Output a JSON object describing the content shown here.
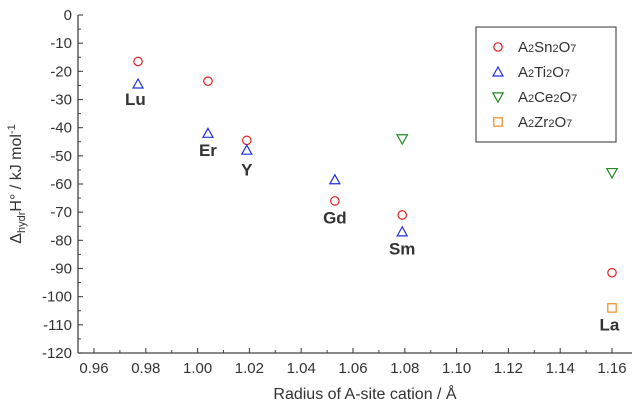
{
  "chart_data": {
    "type": "scatter",
    "title": "",
    "xlabel": "Radius of A-site cation / Å",
    "ylabel": {
      "prefix": "Δ",
      "sub": "hydr",
      "main": "H° / kJ mol",
      "sup": "-1"
    },
    "xlim": [
      0.96,
      1.17
    ],
    "ylim": [
      -120,
      0
    ],
    "xticks": [
      "0.96",
      "0.98",
      "1.00",
      "1.02",
      "1.04",
      "1.06",
      "1.08",
      "1.10",
      "1.12",
      "1.14",
      "1.16"
    ],
    "yticks": [
      "0",
      "-10",
      "-20",
      "-30",
      "-40",
      "-50",
      "-60",
      "-70",
      "-80",
      "-90",
      "-100",
      "-110",
      "-120"
    ],
    "grid": false,
    "legend_position": "top-right",
    "series": [
      {
        "name": "A2Sn2O7",
        "legend": [
          [
            "A",
            ""
          ],
          [
            "2",
            "sub"
          ],
          [
            "Sn",
            ""
          ],
          [
            "2",
            "sub"
          ],
          [
            "O",
            ""
          ],
          [
            "7",
            "sub"
          ]
        ],
        "marker": "circle",
        "color": "#e02020",
        "points": [
          [
            0.977,
            -16.5
          ],
          [
            1.004,
            -23.5
          ],
          [
            1.019,
            -44.5
          ],
          [
            1.053,
            -66
          ],
          [
            1.079,
            -71
          ],
          [
            1.16,
            -91.5
          ]
        ]
      },
      {
        "name": "A2Ti2O7",
        "legend": [
          [
            "A",
            ""
          ],
          [
            "2",
            "sub"
          ],
          [
            "Ti",
            ""
          ],
          [
            "2",
            "sub"
          ],
          [
            "O",
            ""
          ],
          [
            "7",
            "sub"
          ]
        ],
        "marker": "triangle-up",
        "color": "#2030e0",
        "points": [
          [
            0.977,
            -24.5
          ],
          [
            1.004,
            -42
          ],
          [
            1.019,
            -48
          ],
          [
            1.053,
            -58.5
          ],
          [
            1.079,
            -77
          ]
        ]
      },
      {
        "name": "A2Ce2O7",
        "legend": [
          [
            "A",
            ""
          ],
          [
            "2",
            "sub"
          ],
          [
            "Ce",
            ""
          ],
          [
            "2",
            "sub"
          ],
          [
            "O",
            ""
          ],
          [
            "7",
            "sub"
          ]
        ],
        "marker": "triangle-down",
        "color": "#208a20",
        "points": [
          [
            1.079,
            -44
          ],
          [
            1.16,
            -56
          ]
        ]
      },
      {
        "name": "A2Zr2O7",
        "legend": [
          [
            "A",
            ""
          ],
          [
            "2",
            "sub"
          ],
          [
            "Zr",
            ""
          ],
          [
            "2",
            "sub"
          ],
          [
            "O",
            ""
          ],
          [
            "7",
            "sub"
          ]
        ],
        "marker": "square",
        "color": "#f08a20",
        "points": [
          [
            1.16,
            -104
          ]
        ]
      }
    ],
    "annotations": [
      {
        "text": "Lu",
        "x": 0.976,
        "y": -32
      },
      {
        "text": "Er",
        "x": 1.004,
        "y": -50
      },
      {
        "text": "Y",
        "x": 1.019,
        "y": -57
      },
      {
        "text": "Gd",
        "x": 1.053,
        "y": -74
      },
      {
        "text": "Sm",
        "x": 1.079,
        "y": -85
      },
      {
        "text": "La",
        "x": 1.159,
        "y": -112
      }
    ]
  }
}
